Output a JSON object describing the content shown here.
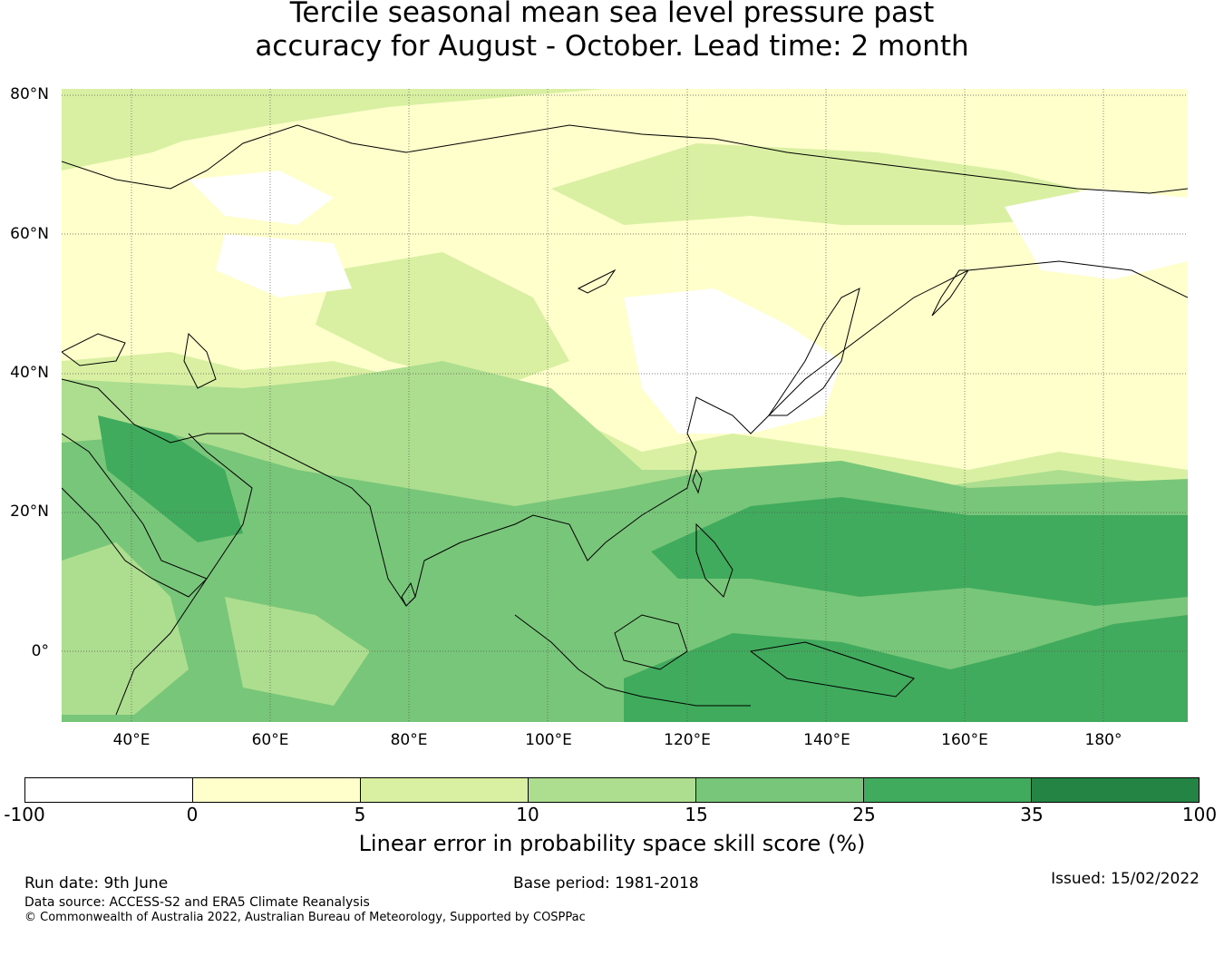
{
  "title": {
    "line1": "Tercile seasonal mean sea level pressure past",
    "line2": "accuracy for August - October. Lead time: 2 month"
  },
  "map": {
    "lat_labels": [
      "80°N",
      "60°N",
      "40°N",
      "20°N",
      "0°"
    ],
    "lon_labels": [
      "40°E",
      "60°E",
      "80°E",
      "100°E",
      "120°E",
      "140°E",
      "160°E",
      "180°"
    ],
    "extent": {
      "lon": [
        30,
        192
      ],
      "lat": [
        -10,
        81
      ]
    },
    "colors": {
      "land_outline": "#000000",
      "gridline": "#555555"
    }
  },
  "colorbar": {
    "ticks": [
      "-100",
      "0",
      "5",
      "10",
      "15",
      "25",
      "35",
      "100"
    ],
    "colors": [
      "#ffffff",
      "#ffffcc",
      "#d9f0a3",
      "#addd8e",
      "#78c679",
      "#41ab5d",
      "#238443"
    ],
    "label": "Linear error in probability space skill score (%)"
  },
  "footer": {
    "run_date": "Run date: 9th June",
    "base_period": "Base period: 1981-2018",
    "issued": "Issued: 15/02/2022",
    "data_source": "Data source: ACCESS-S2 and ERA5 Climate Reanalysis",
    "copyright": "© Commonwealth of Australia 2022, Australian Bureau of Meteorology, Supported by COSPPac"
  }
}
